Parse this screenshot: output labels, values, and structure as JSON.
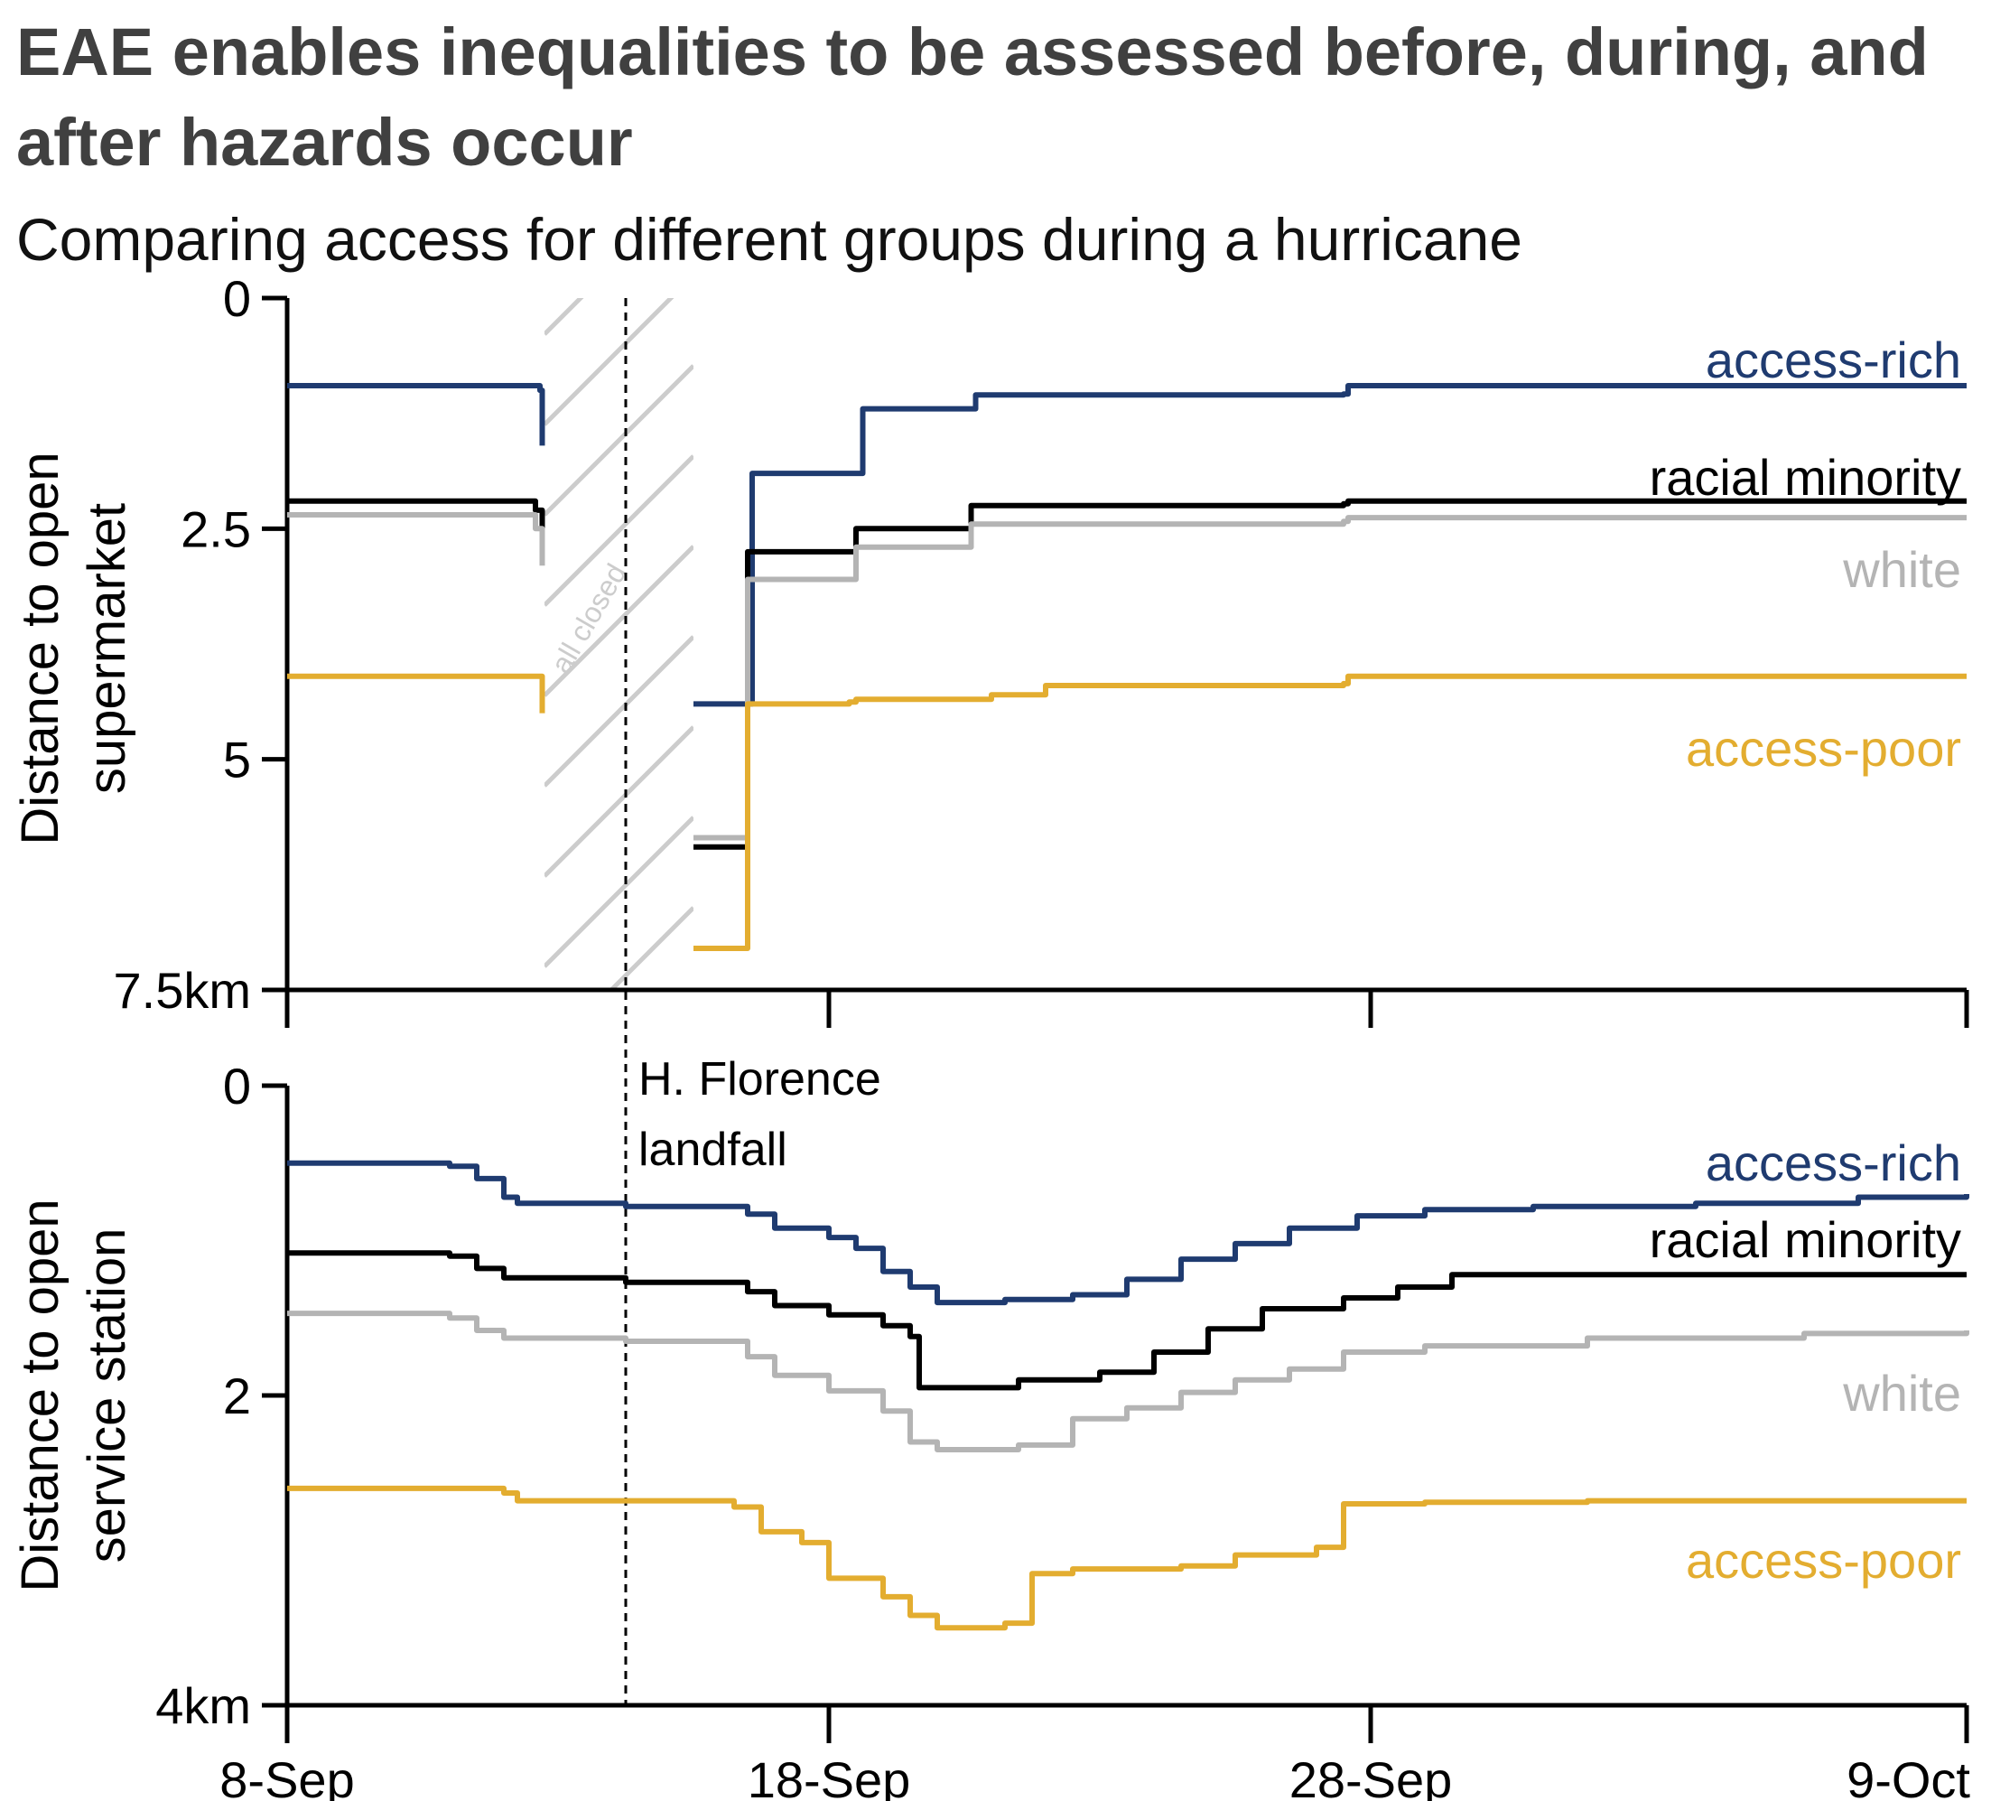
{
  "header": {
    "title": "EAE enables inequalities to be assessed before, during, and after hazards occur",
    "subtitle": "Comparing access for different groups during a hurricane"
  },
  "colors": {
    "access_rich": "#1f3b70",
    "racial_minority": "#000000",
    "white": "#b4b4b4",
    "access_poor": "#e3ad30",
    "hatch": "#cccccc"
  },
  "chart_data": [
    {
      "type": "line",
      "ylabel_lines": [
        "Distance to open",
        "supermarket"
      ],
      "ylim": [
        0,
        7.5
      ],
      "y_inverted": true,
      "y_unit": "km",
      "yticks": [
        0,
        2.5,
        5,
        7.5
      ],
      "ytick_labels": [
        "0",
        "2.5",
        "5",
        "7.5km"
      ],
      "xlim": [
        "2018-09-08",
        "2018-10-09"
      ],
      "xticks": [
        "2018-09-08",
        "2018-09-18",
        "2018-09-28",
        "2018-10-09"
      ],
      "annotation": "all closed",
      "closed_period": [
        "2018-09-12T18:00",
        "2018-09-15T12:00"
      ],
      "series": [
        {
          "name": "access-rich",
          "color_key": "access_rich",
          "segments": [
            [
              [
                "2018-09-08T00:00",
                0.95
              ],
              [
                "2018-09-12T15:00",
                0.95
              ],
              [
                "2018-09-12T16:00",
                1.0
              ],
              [
                "2018-09-12T17:00",
                1.6
              ]
            ],
            [
              [
                "2018-09-15T12:00",
                4.4
              ],
              [
                "2018-09-16T12:00",
                4.4
              ],
              [
                "2018-09-16T14:00",
                1.9
              ],
              [
                "2018-09-18T12:00",
                1.9
              ],
              [
                "2018-09-18T15:00",
                1.2
              ],
              [
                "2018-09-20T15:00",
                1.2
              ],
              [
                "2018-09-20T17:00",
                1.05
              ],
              [
                "2018-09-27T12:00",
                1.04
              ],
              [
                "2018-09-27T14:00",
                0.95
              ],
              [
                "2018-10-09T00:00",
                0.95
              ]
            ]
          ]
        },
        {
          "name": "racial minority",
          "color_key": "racial_minority",
          "segments": [
            [
              [
                "2018-09-08T00:00",
                2.2
              ],
              [
                "2018-09-12T12:00",
                2.2
              ],
              [
                "2018-09-12T14:00",
                2.3
              ],
              [
                "2018-09-12T17:00",
                2.5
              ]
            ],
            [
              [
                "2018-09-15T12:00",
                5.95
              ],
              [
                "2018-09-16T08:00",
                5.95
              ],
              [
                "2018-09-16T12:00",
                2.75
              ],
              [
                "2018-09-18T09:00",
                2.75
              ],
              [
                "2018-09-18T12:00",
                2.5
              ],
              [
                "2018-09-20T12:00",
                2.5
              ],
              [
                "2018-09-20T15:00",
                2.25
              ],
              [
                "2018-09-27T12:00",
                2.23
              ],
              [
                "2018-09-27T14:00",
                2.2
              ],
              [
                "2018-10-09T00:00",
                2.2
              ]
            ]
          ]
        },
        {
          "name": "white",
          "color_key": "white",
          "segments": [
            [
              [
                "2018-09-08T00:00",
                2.35
              ],
              [
                "2018-09-12T12:00",
                2.35
              ],
              [
                "2018-09-12T14:00",
                2.5
              ],
              [
                "2018-09-12T17:00",
                2.9
              ]
            ],
            [
              [
                "2018-09-15T12:00",
                5.85
              ],
              [
                "2018-09-16T08:00",
                5.85
              ],
              [
                "2018-09-16T12:00",
                3.05
              ],
              [
                "2018-09-18T09:00",
                3.05
              ],
              [
                "2018-09-18T12:00",
                2.7
              ],
              [
                "2018-09-20T12:00",
                2.7
              ],
              [
                "2018-09-20T15:00",
                2.45
              ],
              [
                "2018-09-27T12:00",
                2.42
              ],
              [
                "2018-09-27T14:00",
                2.38
              ],
              [
                "2018-10-09T00:00",
                2.38
              ]
            ]
          ]
        },
        {
          "name": "access-poor",
          "color_key": "access_poor",
          "segments": [
            [
              [
                "2018-09-08T00:00",
                4.1
              ],
              [
                "2018-09-12T15:00",
                4.1
              ],
              [
                "2018-09-12T17:00",
                4.5
              ]
            ],
            [
              [
                "2018-09-15T12:00",
                7.05
              ],
              [
                "2018-09-16T08:00",
                7.05
              ],
              [
                "2018-09-16T12:00",
                4.4
              ],
              [
                "2018-09-18T09:00",
                4.38
              ],
              [
                "2018-09-18T12:00",
                4.35
              ],
              [
                "2018-09-21T00:00",
                4.3
              ],
              [
                "2018-09-22T00:00",
                4.2
              ],
              [
                "2018-09-27T12:00",
                4.18
              ],
              [
                "2018-09-27T14:00",
                4.1
              ],
              [
                "2018-10-09T00:00",
                4.1
              ]
            ]
          ]
        }
      ]
    },
    {
      "type": "line",
      "ylabel_lines": [
        "Distance to open",
        "service station"
      ],
      "ylim": [
        0,
        4
      ],
      "y_inverted": true,
      "y_unit": "km",
      "yticks": [
        0,
        2,
        4
      ],
      "ytick_labels": [
        "0",
        "2",
        "4km"
      ],
      "xlim": [
        "2018-09-08",
        "2018-10-09"
      ],
      "xticks": [
        "2018-09-08",
        "2018-09-18",
        "2018-09-28",
        "2018-10-09"
      ],
      "xtick_labels": [
        "8-Sep",
        "18-Sep",
        "28-Sep",
        "9-Oct"
      ],
      "annotation": "H. Florence landfall",
      "annotation_lines": [
        "H. Florence",
        "landfall"
      ],
      "landfall_date": "2018-09-14T06:00",
      "series": [
        {
          "name": "access-rich",
          "color_key": "access_rich",
          "segments": [
            [
              [
                "2018-09-08T00:00",
                0.5
              ],
              [
                "2018-09-11T00:00",
                0.52
              ],
              [
                "2018-09-11T12:00",
                0.6
              ],
              [
                "2018-09-12T00:00",
                0.72
              ],
              [
                "2018-09-12T06:00",
                0.76
              ],
              [
                "2018-09-14T06:00",
                0.78
              ],
              [
                "2018-09-16T12:00",
                0.83
              ],
              [
                "2018-09-17T00:00",
                0.92
              ],
              [
                "2018-09-18T00:00",
                0.98
              ],
              [
                "2018-09-18T12:00",
                1.05
              ],
              [
                "2018-09-19T00:00",
                1.2
              ],
              [
                "2018-09-19T12:00",
                1.3
              ],
              [
                "2018-09-20T00:00",
                1.4
              ],
              [
                "2018-09-20T12:00",
                1.4
              ],
              [
                "2018-09-21T06:00",
                1.38
              ],
              [
                "2018-09-22T12:00",
                1.35
              ],
              [
                "2018-09-23T12:00",
                1.25
              ],
              [
                "2018-09-24T12:00",
                1.12
              ],
              [
                "2018-09-25T12:00",
                1.02
              ],
              [
                "2018-09-26T12:00",
                0.92
              ],
              [
                "2018-09-27T18:00",
                0.84
              ],
              [
                "2018-09-29T00:00",
                0.8
              ],
              [
                "2018-10-01T00:00",
                0.78
              ],
              [
                "2018-10-04T00:00",
                0.76
              ],
              [
                "2018-10-07T00:00",
                0.72
              ],
              [
                "2018-10-09T00:00",
                0.7
              ]
            ]
          ]
        },
        {
          "name": "racial minority",
          "color_key": "racial_minority",
          "segments": [
            [
              [
                "2018-09-08T00:00",
                1.08
              ],
              [
                "2018-09-11T00:00",
                1.1
              ],
              [
                "2018-09-11T12:00",
                1.18
              ],
              [
                "2018-09-12T00:00",
                1.24
              ],
              [
                "2018-09-14T06:00",
                1.27
              ],
              [
                "2018-09-16T12:00",
                1.33
              ],
              [
                "2018-09-17T00:00",
                1.42
              ],
              [
                "2018-09-18T00:00",
                1.48
              ],
              [
                "2018-09-19T00:00",
                1.55
              ],
              [
                "2018-09-19T12:00",
                1.62
              ],
              [
                "2018-09-19T16:00",
                1.95
              ],
              [
                "2018-09-20T12:00",
                1.95
              ],
              [
                "2018-09-21T12:00",
                1.9
              ],
              [
                "2018-09-23T00:00",
                1.85
              ],
              [
                "2018-09-24T00:00",
                1.72
              ],
              [
                "2018-09-25T00:00",
                1.57
              ],
              [
                "2018-09-26T00:00",
                1.44
              ],
              [
                "2018-09-27T12:00",
                1.37
              ],
              [
                "2018-09-28T12:00",
                1.3
              ],
              [
                "2018-09-29T12:00",
                1.22
              ],
              [
                "2018-10-02T00:00",
                1.22
              ],
              [
                "2018-10-06T00:00",
                1.22
              ],
              [
                "2018-10-09T00:00",
                1.22
              ]
            ]
          ]
        },
        {
          "name": "white",
          "color_key": "white",
          "segments": [
            [
              [
                "2018-09-08T00:00",
                1.47
              ],
              [
                "2018-09-11T00:00",
                1.5
              ],
              [
                "2018-09-11T12:00",
                1.58
              ],
              [
                "2018-09-12T00:00",
                1.63
              ],
              [
                "2018-09-14T06:00",
                1.65
              ],
              [
                "2018-09-16T12:00",
                1.75
              ],
              [
                "2018-09-17T00:00",
                1.87
              ],
              [
                "2018-09-18T00:00",
                1.97
              ],
              [
                "2018-09-19T00:00",
                2.1
              ],
              [
                "2018-09-19T12:00",
                2.3
              ],
              [
                "2018-09-20T00:00",
                2.35
              ],
              [
                "2018-09-21T12:00",
                2.32
              ],
              [
                "2018-09-22T12:00",
                2.15
              ],
              [
                "2018-09-23T12:00",
                2.08
              ],
              [
                "2018-09-24T12:00",
                1.98
              ],
              [
                "2018-09-25T12:00",
                1.9
              ],
              [
                "2018-09-26T12:00",
                1.83
              ],
              [
                "2018-09-27T12:00",
                1.72
              ],
              [
                "2018-09-29T00:00",
                1.68
              ],
              [
                "2018-10-02T00:00",
                1.63
              ],
              [
                "2018-10-06T00:00",
                1.6
              ],
              [
                "2018-10-09T00:00",
                1.58
              ]
            ]
          ]
        },
        {
          "name": "access-poor",
          "color_key": "access_poor",
          "segments": [
            [
              [
                "2018-09-08T00:00",
                2.6
              ],
              [
                "2018-09-12T00:00",
                2.63
              ],
              [
                "2018-09-12T06:00",
                2.68
              ],
              [
                "2018-09-14T06:00",
                2.68
              ],
              [
                "2018-09-16T06:00",
                2.72
              ],
              [
                "2018-09-16T18:00",
                2.88
              ],
              [
                "2018-09-17T12:00",
                2.95
              ],
              [
                "2018-09-18T00:00",
                3.18
              ],
              [
                "2018-09-19T00:00",
                3.3
              ],
              [
                "2018-09-19T12:00",
                3.42
              ],
              [
                "2018-09-20T00:00",
                3.5
              ],
              [
                "2018-09-21T06:00",
                3.47
              ],
              [
                "2018-09-21T18:00",
                3.15
              ],
              [
                "2018-09-22T12:00",
                3.12
              ],
              [
                "2018-09-24T12:00",
                3.1
              ],
              [
                "2018-09-25T12:00",
                3.03
              ],
              [
                "2018-09-27T00:00",
                2.98
              ],
              [
                "2018-09-27T12:00",
                2.7
              ],
              [
                "2018-09-29T00:00",
                2.69
              ],
              [
                "2018-10-02T00:00",
                2.68
              ],
              [
                "2018-10-06T00:00",
                2.68
              ],
              [
                "2018-10-09T00:00",
                2.68
              ]
            ]
          ]
        }
      ]
    }
  ]
}
